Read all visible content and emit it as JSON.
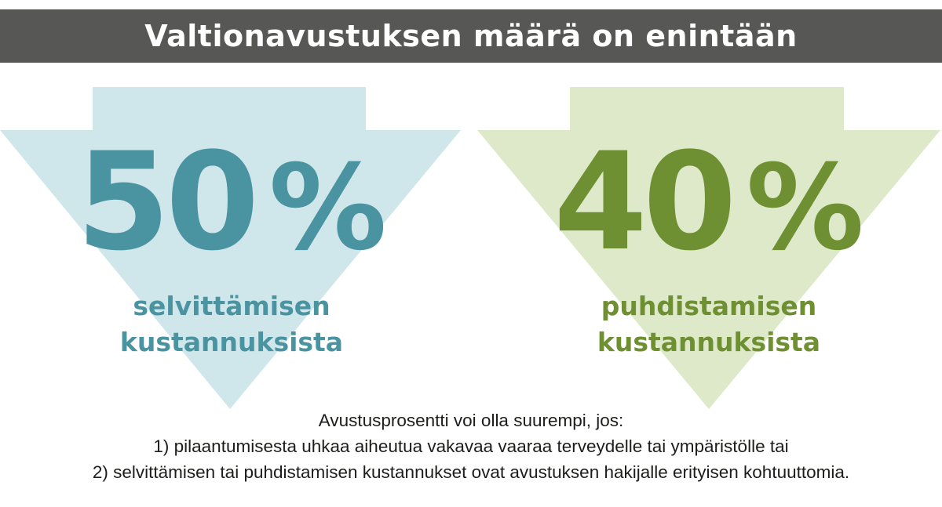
{
  "header": {
    "title": "Valtionavustuksen määrä on enintään"
  },
  "colors": {
    "header_bg": "#575756",
    "blue_arrow": "#cfe6eb",
    "blue_text": "#4a93a1",
    "green_arrow": "#dde9c8",
    "green_text": "#6e8f32"
  },
  "left_panel": {
    "number": "50",
    "percent_sign": "%",
    "line1": "selvittämisen",
    "line2": "kustannuksista"
  },
  "right_panel": {
    "number": "40",
    "percent_sign": "%",
    "line1": "puhdistamisen",
    "line2": "kustannuksista"
  },
  "footnote": {
    "intro": "Avustusprosentti voi olla suurempi, jos:",
    "condition1": "1) pilaantumisesta uhkaa aiheutua vakavaa vaaraa terveydelle tai ympäristölle tai",
    "condition2": "2) selvittämisen tai puhdistamisen kustannukset ovat avustuksen hakijalle erityisen kohtuuttomia."
  }
}
